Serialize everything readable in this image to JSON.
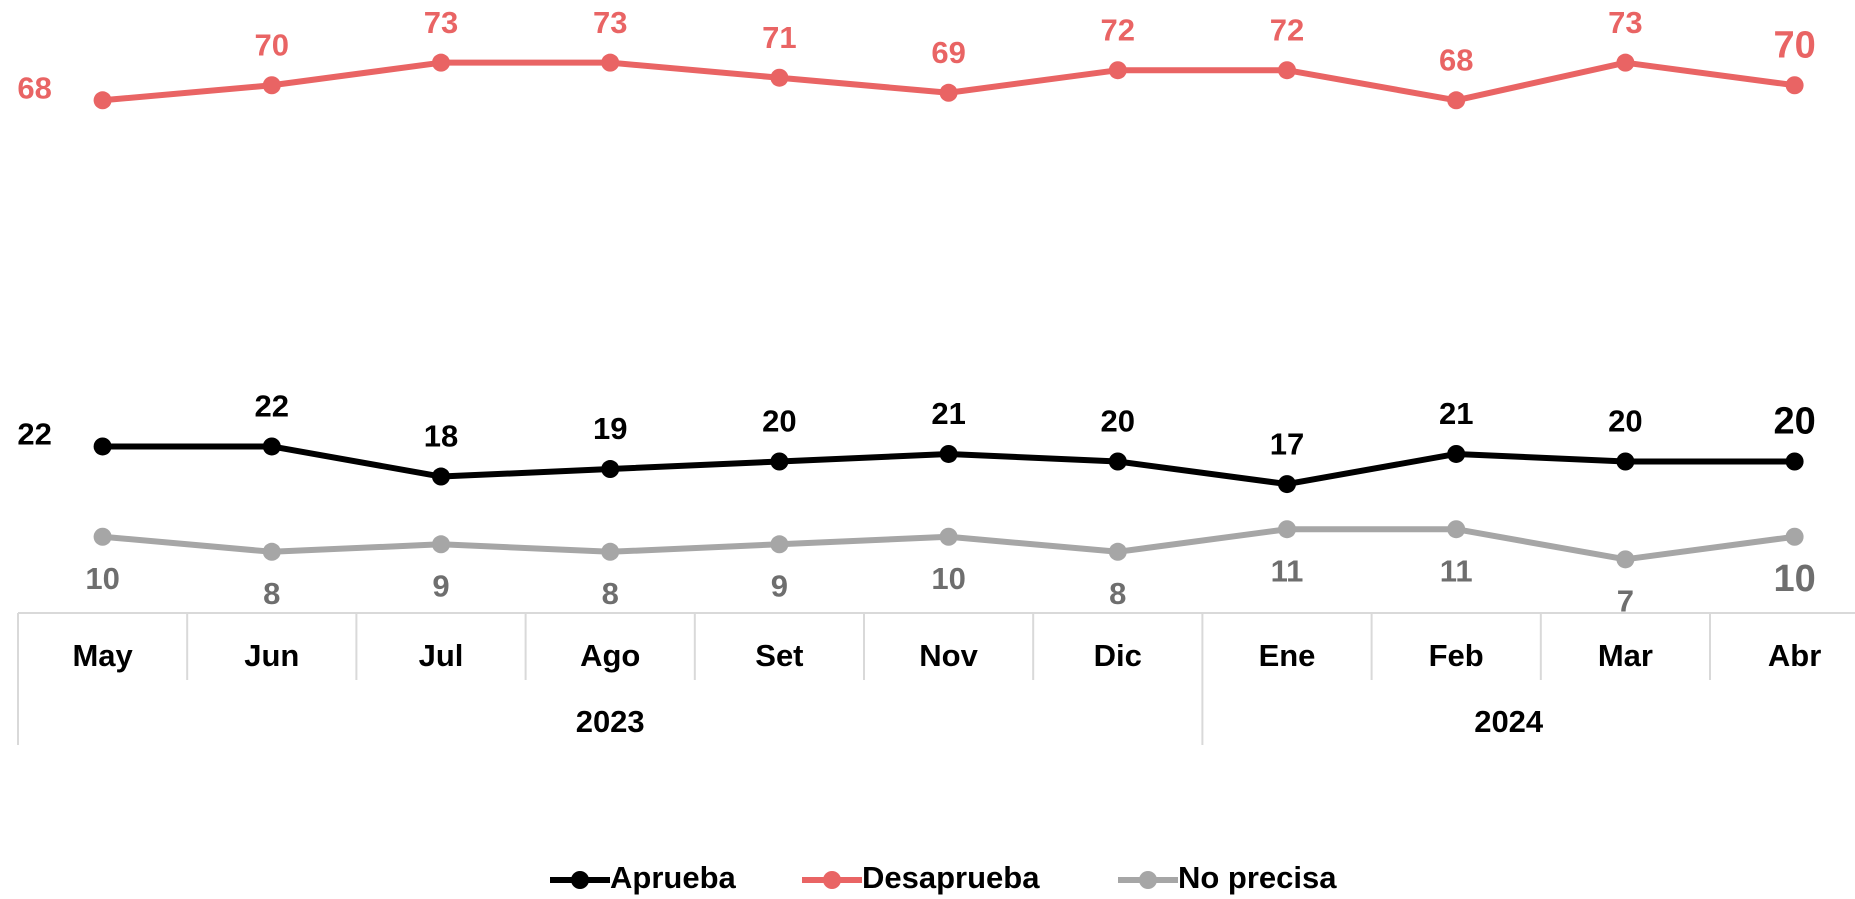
{
  "chart_data": {
    "type": "line",
    "groups": [
      {
        "label": "2023",
        "categories": [
          "May",
          "Jun",
          "Jul",
          "Ago",
          "Set",
          "Nov",
          "Dic"
        ]
      },
      {
        "label": "2024",
        "categories": [
          "Ene",
          "Feb",
          "Mar",
          "Abr"
        ]
      }
    ],
    "series": [
      {
        "name": "Aprueba",
        "color": "#000000",
        "label_color": "#000000",
        "values": [
          22,
          22,
          18,
          19,
          20,
          21,
          20,
          17,
          21,
          20,
          20
        ]
      },
      {
        "name": "Desaprueba",
        "color": "#e96464",
        "label_color": "#e96464",
        "values": [
          68,
          70,
          73,
          73,
          71,
          69,
          72,
          72,
          68,
          73,
          70
        ]
      },
      {
        "name": "No precisa",
        "color": "#a6a6a6",
        "label_color": "#6e6e6e",
        "values": [
          10,
          8,
          9,
          8,
          9,
          10,
          8,
          11,
          11,
          7,
          10
        ]
      }
    ],
    "ylim": [
      0,
      80
    ],
    "legend": "bottom",
    "grid": false
  }
}
